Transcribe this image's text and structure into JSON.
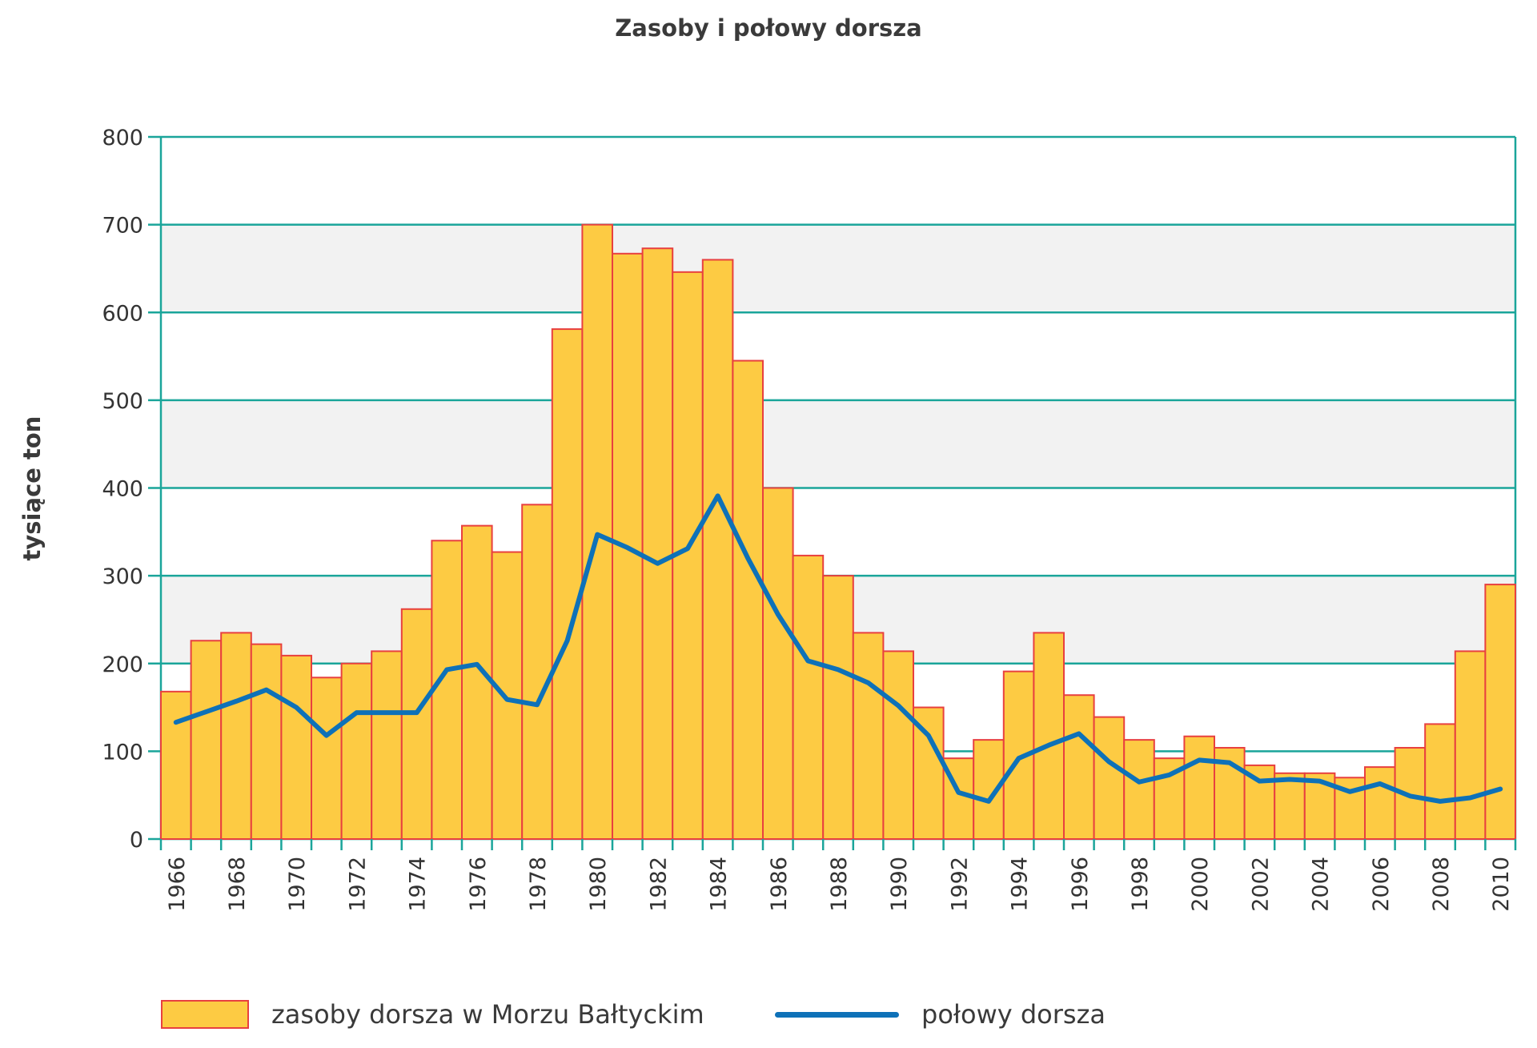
{
  "chart_data": {
    "type": "bar",
    "title": "Zasoby i połowy dorsza",
    "ylabel": "tysiące ton",
    "xlabel": "",
    "ylim": [
      0,
      800
    ],
    "yticks": [
      0,
      100,
      200,
      300,
      400,
      500,
      600,
      700,
      800
    ],
    "grid": true,
    "legend_position": "bottom",
    "categories": [
      1966,
      1967,
      1968,
      1969,
      1970,
      1971,
      1972,
      1973,
      1974,
      1975,
      1976,
      1977,
      1978,
      1979,
      1980,
      1981,
      1982,
      1983,
      1984,
      1985,
      1986,
      1987,
      1988,
      1989,
      1990,
      1991,
      1992,
      1993,
      1994,
      1995,
      1996,
      1997,
      1998,
      1999,
      2000,
      2001,
      2002,
      2003,
      2004,
      2005,
      2006,
      2007,
      2008,
      2009,
      2010
    ],
    "xtick_labels": [
      "1966",
      "1968",
      "1970",
      "1972",
      "1974",
      "1976",
      "1978",
      "1980",
      "1982",
      "1984",
      "1986",
      "1988",
      "1990",
      "1992",
      "1994",
      "1996",
      "1998",
      "2000",
      "2002",
      "2004",
      "2006",
      "2008",
      "2010"
    ],
    "series": [
      {
        "name": "zasoby dorsza w Morzu Bałtyckim",
        "type": "bar",
        "color": "#fdcb43",
        "stroke": "#e8403f",
        "values": [
          168,
          226,
          235,
          222,
          209,
          184,
          200,
          214,
          262,
          340,
          357,
          327,
          381,
          581,
          700,
          667,
          673,
          646,
          660,
          545,
          400,
          323,
          300,
          235,
          214,
          150,
          92,
          113,
          191,
          235,
          164,
          139,
          113,
          92,
          117,
          104,
          84,
          75,
          75,
          70,
          82,
          104,
          131,
          214,
          290
        ]
      },
      {
        "name": "połowy dorsza",
        "type": "line",
        "color": "#0e71b8",
        "values": [
          133,
          145,
          157,
          170,
          150,
          118,
          144,
          144,
          144,
          193,
          199,
          159,
          153,
          226,
          347,
          332,
          314,
          331,
          391,
          320,
          256,
          203,
          193,
          178,
          152,
          118,
          53,
          43,
          92,
          107,
          120,
          88,
          65,
          73,
          90,
          87,
          66,
          68,
          66,
          54,
          63,
          49,
          43,
          47,
          57
        ]
      }
    ],
    "band_color": "#f2f2f2",
    "grid_color": "#1aa59a"
  }
}
